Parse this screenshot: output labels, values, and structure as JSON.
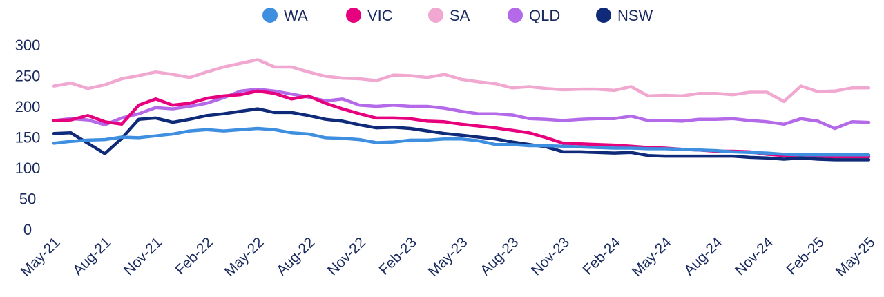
{
  "chart_data": {
    "type": "line",
    "title": "",
    "xlabel": "",
    "ylabel": "",
    "ylim": [
      0,
      300
    ],
    "y_ticks": [
      "0",
      "50",
      "100",
      "150",
      "200",
      "250",
      "300"
    ],
    "x": [
      "May-21",
      "Jun-21",
      "Jul-21",
      "Aug-21",
      "Sep-21",
      "Oct-21",
      "Nov-21",
      "Dec-21",
      "Jan-22",
      "Feb-22",
      "Mar-22",
      "Apr-22",
      "May-22",
      "Jun-22",
      "Jul-22",
      "Aug-22",
      "Sep-22",
      "Oct-22",
      "Nov-22",
      "Dec-22",
      "Jan-23",
      "Feb-23",
      "Mar-23",
      "Apr-23",
      "May-23",
      "Jun-23",
      "Jul-23",
      "Aug-23",
      "Sep-23",
      "Oct-23",
      "Nov-23",
      "Dec-23",
      "Jan-24",
      "Feb-24",
      "Mar-24",
      "Apr-24",
      "May-24",
      "Jun-24",
      "Jul-24",
      "Aug-24",
      "Sep-24",
      "Oct-24",
      "Nov-24",
      "Dec-24",
      "Jan-25",
      "Feb-25",
      "Mar-25",
      "Apr-25",
      "May-25"
    ],
    "x_tick_labels": [
      "May-21",
      "Aug-21",
      "Nov-21",
      "Feb-22",
      "May-22",
      "Aug-22",
      "Nov-22",
      "Feb-23",
      "May-23",
      "Aug-23",
      "Nov-23",
      "Feb-24",
      "May-24",
      "Aug-24",
      "Nov-24",
      "Feb-25",
      "May-25"
    ],
    "legend_position": "top",
    "grid": false,
    "series": [
      {
        "name": "WA",
        "color": "#3f8fe0",
        "values": [
          140,
          143,
          145,
          146,
          150,
          149,
          152,
          155,
          160,
          162,
          160,
          162,
          164,
          162,
          157,
          155,
          149,
          148,
          146,
          141,
          142,
          145,
          145,
          147,
          147,
          144,
          138,
          138,
          136,
          136,
          135,
          134,
          133,
          132,
          132,
          131,
          131,
          130,
          129,
          128,
          126,
          125,
          124,
          122,
          121,
          121,
          121,
          121,
          121
        ]
      },
      {
        "name": "VIC",
        "color": "#e6007e",
        "values": [
          177,
          178,
          185,
          175,
          171,
          202,
          212,
          202,
          205,
          213,
          217,
          219,
          225,
          221,
          212,
          217,
          205,
          196,
          188,
          181,
          181,
          180,
          176,
          175,
          171,
          168,
          165,
          161,
          157,
          149,
          140,
          139,
          138,
          137,
          135,
          133,
          132,
          130,
          129,
          127,
          127,
          126,
          122,
          120,
          119,
          119,
          118,
          118,
          118
        ]
      },
      {
        "name": "SA",
        "color": "#f0a8d0",
        "values": [
          233,
          238,
          229,
          235,
          245,
          250,
          256,
          252,
          247,
          256,
          264,
          270,
          276,
          264,
          264,
          256,
          249,
          246,
          245,
          242,
          251,
          250,
          247,
          252,
          244,
          240,
          237,
          230,
          232,
          229,
          227,
          228,
          228,
          226,
          232,
          217,
          218,
          217,
          221,
          221,
          219,
          223,
          223,
          208,
          233,
          224,
          225,
          230,
          230
        ]
      },
      {
        "name": "QLD",
        "color": "#b469e8",
        "values": [
          177,
          180,
          178,
          170,
          181,
          188,
          198,
          196,
          200,
          205,
          214,
          225,
          228,
          225,
          220,
          215,
          209,
          212,
          202,
          200,
          202,
          200,
          200,
          197,
          192,
          188,
          188,
          186,
          180,
          179,
          177,
          179,
          180,
          180,
          184,
          177,
          177,
          176,
          179,
          179,
          180,
          177,
          175,
          171,
          180,
          176,
          164,
          175,
          174
        ]
      },
      {
        "name": "NSW",
        "color": "#0e2a78",
        "values": [
          156,
          157,
          140,
          123,
          148,
          179,
          181,
          174,
          179,
          185,
          188,
          192,
          196,
          190,
          190,
          185,
          179,
          176,
          170,
          165,
          166,
          164,
          160,
          156,
          153,
          150,
          147,
          142,
          138,
          134,
          126,
          126,
          125,
          124,
          125,
          120,
          119,
          119,
          119,
          119,
          119,
          117,
          116,
          114,
          116,
          114,
          113,
          113,
          113
        ]
      }
    ]
  }
}
